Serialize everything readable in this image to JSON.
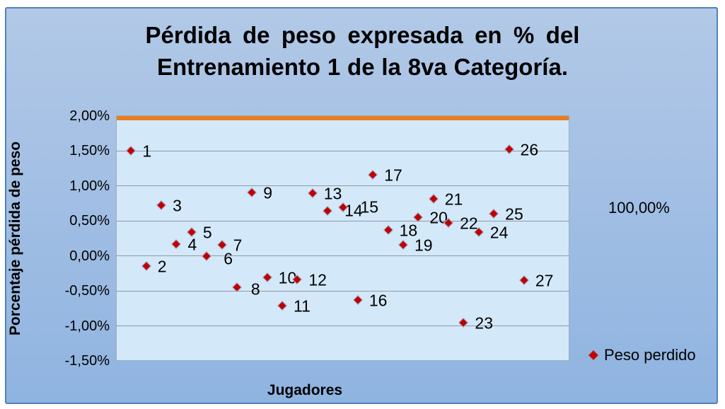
{
  "figure": {
    "title_line1": "Pérdida de peso expresada en % del",
    "title_line2": "Entrenamiento 1 de la 8va Categoría.",
    "xlabel": "Jugadores",
    "ylabel": "Porcentaje pérdida de peso",
    "right_label": "100,00%",
    "legend_label": "Peso perdido",
    "colors": {
      "marker_red": "#c00000",
      "reference_line_orange": "#e87d1e",
      "plot_background": "#d3e9fa",
      "figure_border_blue": "#4f81bd",
      "gridline_gray": "#8f99a3"
    }
  },
  "chart_data": {
    "type": "scatter",
    "title": "Pérdida de peso expresada en % del Entrenamiento 1 de la 8va Categoría.",
    "xlabel": "Jugadores",
    "ylabel": "Porcentaje pérdida de peso",
    "x_axis": {
      "min": 0,
      "max": 30,
      "gridlines": false
    },
    "y_axis": {
      "min": -1.5,
      "max": 2.0,
      "tick_values": [
        2.0,
        1.5,
        1.0,
        0.5,
        0.0,
        -0.5,
        -1.0,
        -1.5
      ],
      "tick_labels": [
        "2,00%",
        "1,50%",
        "1,00%",
        "0,50%",
        "0,00%",
        "-0,50%",
        "-1,00%",
        "-1,50%"
      ],
      "gridlines": true
    },
    "reference_line": {
      "y": 1.96,
      "color": "#e87d1e"
    },
    "legend": {
      "position": "bottom-right",
      "entries": [
        {
          "label": "Peso perdido",
          "marker": "diamond",
          "color": "#c00000"
        }
      ]
    },
    "annotations": [
      {
        "text": "100,00%",
        "position": "right-of-plot"
      }
    ],
    "series": [
      {
        "name": "Peso perdido",
        "marker": "diamond",
        "color": "#c00000",
        "points": [
          {
            "x": 1,
            "y": 1.5,
            "label": "1"
          },
          {
            "x": 2,
            "y": -0.15,
            "label": "2"
          },
          {
            "x": 3,
            "y": 0.72,
            "label": "3"
          },
          {
            "x": 4,
            "y": 0.17,
            "label": "4"
          },
          {
            "x": 5,
            "y": 0.34,
            "label": "5"
          },
          {
            "x": 6,
            "y": 0.0,
            "label": "6"
          },
          {
            "x": 7,
            "y": 0.16,
            "label": "7"
          },
          {
            "x": 8,
            "y": -0.45,
            "label": "8"
          },
          {
            "x": 9,
            "y": 0.9,
            "label": "9"
          },
          {
            "x": 10,
            "y": -0.31,
            "label": "10"
          },
          {
            "x": 11,
            "y": -0.71,
            "label": "11"
          },
          {
            "x": 12,
            "y": -0.34,
            "label": "12"
          },
          {
            "x": 13,
            "y": 0.89,
            "label": "13"
          },
          {
            "x": 14,
            "y": 0.64,
            "label": "14"
          },
          {
            "x": 15,
            "y": 0.69,
            "label": "15"
          },
          {
            "x": 16,
            "y": -0.63,
            "label": "16"
          },
          {
            "x": 17,
            "y": 1.16,
            "label": "17"
          },
          {
            "x": 18,
            "y": 0.37,
            "label": "18"
          },
          {
            "x": 19,
            "y": 0.16,
            "label": "19"
          },
          {
            "x": 20,
            "y": 0.55,
            "label": "20"
          },
          {
            "x": 21,
            "y": 0.81,
            "label": "21"
          },
          {
            "x": 22,
            "y": 0.47,
            "label": "22"
          },
          {
            "x": 23,
            "y": -0.95,
            "label": "23"
          },
          {
            "x": 24,
            "y": 0.34,
            "label": "24"
          },
          {
            "x": 25,
            "y": 0.6,
            "label": "25"
          },
          {
            "x": 26,
            "y": 1.52,
            "label": "26"
          },
          {
            "x": 27,
            "y": -0.35,
            "label": "27"
          }
        ]
      }
    ]
  }
}
